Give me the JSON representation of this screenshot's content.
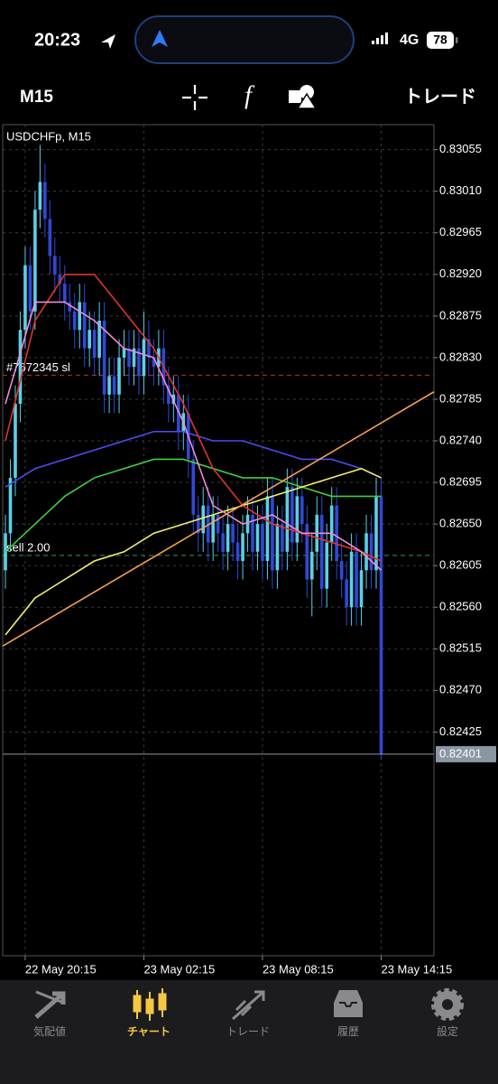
{
  "status_bar": {
    "time": "20:23",
    "network": "4G",
    "battery": "78"
  },
  "toolbar": {
    "timeframe": "M15",
    "trade": "トレード"
  },
  "chart_data": {
    "type": "candlestick",
    "title": "USDCHFp, M15",
    "up_color": "#5ad0e6",
    "down_color": "#3148d6",
    "x": [
      0,
      1,
      2,
      3,
      4,
      5,
      6,
      7,
      8,
      9,
      10,
      11,
      12,
      13,
      14,
      15,
      16,
      17,
      18,
      19,
      20,
      21,
      22,
      23,
      24,
      25,
      26,
      27,
      28,
      29,
      30,
      31,
      32,
      33,
      34,
      35,
      36,
      37,
      38,
      39,
      40,
      41,
      42,
      43,
      44,
      45,
      46,
      47,
      48,
      49,
      50,
      51,
      52,
      53,
      54,
      55,
      56,
      57,
      58,
      59,
      60,
      61,
      62,
      63,
      64,
      65,
      66,
      67,
      68,
      69,
      70,
      71,
      72,
      73,
      74,
      75,
      76
    ],
    "open": [
      0.826,
      0.8264,
      0.827,
      0.8278,
      0.8286,
      0.8293,
      0.8288,
      0.8299,
      0.8302,
      0.8298,
      0.8294,
      0.8292,
      0.8291,
      0.8289,
      0.8288,
      0.8286,
      0.8289,
      0.8284,
      0.8286,
      0.8283,
      0.8287,
      0.8279,
      0.8281,
      0.8279,
      0.8283,
      0.8284,
      0.8282,
      0.8284,
      0.8281,
      0.8285,
      0.8283,
      0.8282,
      0.8284,
      0.828,
      0.8278,
      0.8279,
      0.8275,
      0.8277,
      0.8272,
      0.8266,
      0.8264,
      0.8267,
      0.8263,
      0.8266,
      0.8264,
      0.8262,
      0.8265,
      0.8263,
      0.8261,
      0.8264,
      0.8266,
      0.8262,
      0.8265,
      0.8261,
      0.8268,
      0.826,
      0.8265,
      0.8262,
      0.8269,
      0.8263,
      0.8268,
      0.8265,
      0.8259,
      0.8262,
      0.8266,
      0.8258,
      0.8263,
      0.8267,
      0.8261,
      0.8259,
      0.8256,
      0.8262,
      0.8256,
      0.826,
      0.8264,
      0.826,
      0.8268
    ],
    "high": [
      0.8266,
      0.8272,
      0.828,
      0.8288,
      0.8295,
      0.8295,
      0.8301,
      0.8306,
      0.8304,
      0.83,
      0.8296,
      0.8294,
      0.8293,
      0.8291,
      0.829,
      0.8291,
      0.8291,
      0.8288,
      0.8288,
      0.8289,
      0.8289,
      0.8283,
      0.8283,
      0.8285,
      0.8286,
      0.8286,
      0.8286,
      0.8286,
      0.8288,
      0.8287,
      0.8285,
      0.8286,
      0.8286,
      0.8282,
      0.8281,
      0.8281,
      0.8279,
      0.8279,
      0.8274,
      0.8268,
      0.8269,
      0.8269,
      0.8268,
      0.8268,
      0.8266,
      0.8267,
      0.8267,
      0.8265,
      0.8266,
      0.8268,
      0.8268,
      0.8267,
      0.8267,
      0.827,
      0.827,
      0.8267,
      0.8267,
      0.8271,
      0.8271,
      0.827,
      0.827,
      0.8267,
      0.8264,
      0.8268,
      0.8268,
      0.8265,
      0.8269,
      0.8269,
      0.8263,
      0.8261,
      0.8264,
      0.8264,
      0.8262,
      0.8266,
      0.8266,
      0.827,
      0.827
    ],
    "low": [
      0.8258,
      0.8262,
      0.8268,
      0.8276,
      0.8284,
      0.8286,
      0.8286,
      0.8297,
      0.8296,
      0.8292,
      0.829,
      0.8289,
      0.8287,
      0.8286,
      0.8284,
      0.8284,
      0.8282,
      0.8282,
      0.8281,
      0.8281,
      0.8277,
      0.8277,
      0.8277,
      0.8277,
      0.8281,
      0.828,
      0.828,
      0.8279,
      0.8279,
      0.8281,
      0.828,
      0.828,
      0.8278,
      0.8276,
      0.8276,
      0.8273,
      0.8273,
      0.827,
      0.8264,
      0.8262,
      0.8262,
      0.8261,
      0.8261,
      0.8262,
      0.826,
      0.826,
      0.8261,
      0.8259,
      0.8259,
      0.8262,
      0.826,
      0.826,
      0.8259,
      0.8259,
      0.8258,
      0.8258,
      0.826,
      0.826,
      0.8261,
      0.8261,
      0.8263,
      0.8257,
      0.8255,
      0.826,
      0.8256,
      0.8256,
      0.8261,
      0.8259,
      0.8257,
      0.8254,
      0.8254,
      0.8254,
      0.8254,
      0.8258,
      0.8258,
      0.8258,
      0.82395
    ],
    "close": [
      0.8264,
      0.827,
      0.8278,
      0.8286,
      0.8293,
      0.8288,
      0.8299,
      0.8302,
      0.8298,
      0.8294,
      0.8292,
      0.8291,
      0.8289,
      0.8288,
      0.8286,
      0.8289,
      0.8284,
      0.8286,
      0.8283,
      0.8287,
      0.8279,
      0.8281,
      0.8279,
      0.8283,
      0.8284,
      0.8282,
      0.8284,
      0.8281,
      0.8285,
      0.8283,
      0.8282,
      0.8284,
      0.828,
      0.8278,
      0.8279,
      0.8275,
      0.8277,
      0.8272,
      0.8266,
      0.8264,
      0.8267,
      0.8263,
      0.8266,
      0.8264,
      0.8262,
      0.8265,
      0.8263,
      0.8261,
      0.8264,
      0.8266,
      0.8262,
      0.8265,
      0.8261,
      0.8268,
      0.826,
      0.8265,
      0.8262,
      0.8269,
      0.8263,
      0.8268,
      0.8265,
      0.8259,
      0.8262,
      0.8266,
      0.8258,
      0.8263,
      0.8267,
      0.8261,
      0.8259,
      0.8256,
      0.8262,
      0.8256,
      0.826,
      0.8264,
      0.826,
      0.8268,
      0.82401
    ],
    "series": [
      {
        "color": "#4a4ef0",
        "x": [
          0,
          6,
          12,
          18,
          24,
          30,
          36,
          42,
          48,
          54,
          60,
          66,
          72,
          76
        ],
        "values": [
          0.8269,
          0.8271,
          0.8272,
          0.8273,
          0.8274,
          0.8275,
          0.8275,
          0.8274,
          0.8274,
          0.8273,
          0.8272,
          0.8272,
          0.8271,
          0.827
        ]
      },
      {
        "color": "#3fcf3f",
        "x": [
          0,
          6,
          12,
          18,
          24,
          30,
          36,
          42,
          48,
          54,
          60,
          66,
          72,
          76
        ],
        "values": [
          0.8262,
          0.8265,
          0.8268,
          0.827,
          0.8271,
          0.8272,
          0.8272,
          0.8271,
          0.827,
          0.827,
          0.8269,
          0.8268,
          0.8268,
          0.8268
        ]
      },
      {
        "color": "#f4f06a",
        "x": [
          0,
          6,
          12,
          18,
          24,
          30,
          36,
          42,
          48,
          54,
          60,
          66,
          72,
          76
        ],
        "values": [
          0.8253,
          0.8257,
          0.8259,
          0.8261,
          0.8262,
          0.8264,
          0.8265,
          0.8266,
          0.8267,
          0.8268,
          0.8269,
          0.827,
          0.8271,
          0.827
        ]
      },
      {
        "color": "#e0342c",
        "x": [
          0,
          6,
          12,
          18,
          24,
          30,
          36,
          42,
          48,
          54,
          60,
          66,
          72,
          76
        ],
        "values": [
          0.8274,
          0.8287,
          0.8292,
          0.8292,
          0.8288,
          0.8284,
          0.8278,
          0.8271,
          0.8267,
          0.8265,
          0.8264,
          0.8263,
          0.8262,
          0.8261
        ]
      },
      {
        "color": "#f08ad8",
        "x": [
          0,
          6,
          12,
          18,
          24,
          30,
          36,
          42,
          48,
          54,
          60,
          66,
          72,
          76
        ],
        "values": [
          0.8278,
          0.8289,
          0.8289,
          0.8287,
          0.8284,
          0.8283,
          0.8276,
          0.8267,
          0.8265,
          0.8266,
          0.8264,
          0.8264,
          0.8262,
          0.826
        ]
      },
      {
        "color": "#f5a050",
        "x": [
          -0.55,
          86.68
        ],
        "values": [
          0.82518,
          0.82793
        ]
      }
    ],
    "levels": [
      {
        "name": "#7672345 sl",
        "value": 0.82811,
        "color": "#b8322a"
      },
      {
        "name": "sell 2.00",
        "value": 0.82616,
        "color": "#2f9a4f"
      }
    ],
    "last_price": {
      "value": 0.82401,
      "label": "0.82401"
    },
    "xlim": [
      -0.55,
      86.68
    ],
    "xticks": [
      {
        "value": 4,
        "label": "22 May 20:15"
      },
      {
        "value": 28,
        "label": "23 May 02:15"
      },
      {
        "value": 52,
        "label": "23 May 08:15"
      },
      {
        "value": 76,
        "label": "23 May 14:15"
      }
    ],
    "ylim": [
      0.82183,
      0.83082
    ],
    "yticks": [
      {
        "value": 0.83055,
        "label": "0.83055"
      },
      {
        "value": 0.8301,
        "label": "0.83010"
      },
      {
        "value": 0.82965,
        "label": "0.82965"
      },
      {
        "value": 0.8292,
        "label": "0.82920"
      },
      {
        "value": 0.82875,
        "label": "0.82875"
      },
      {
        "value": 0.8283,
        "label": "0.82830"
      },
      {
        "value": 0.82785,
        "label": "0.82785"
      },
      {
        "value": 0.8274,
        "label": "0.82740"
      },
      {
        "value": 0.82695,
        "label": "0.82695"
      },
      {
        "value": 0.8265,
        "label": "0.82650"
      },
      {
        "value": 0.82605,
        "label": "0.82605"
      },
      {
        "value": 0.8256,
        "label": "0.82560"
      },
      {
        "value": 0.82515,
        "label": "0.82515"
      },
      {
        "value": 0.8247,
        "label": "0.82470"
      },
      {
        "value": 0.82425,
        "label": "0.82425"
      }
    ],
    "grid": true
  },
  "tab_bar": {
    "tabs": [
      "気配値",
      "チャート",
      "トレード",
      "履歴",
      "設定"
    ],
    "active": 1
  }
}
